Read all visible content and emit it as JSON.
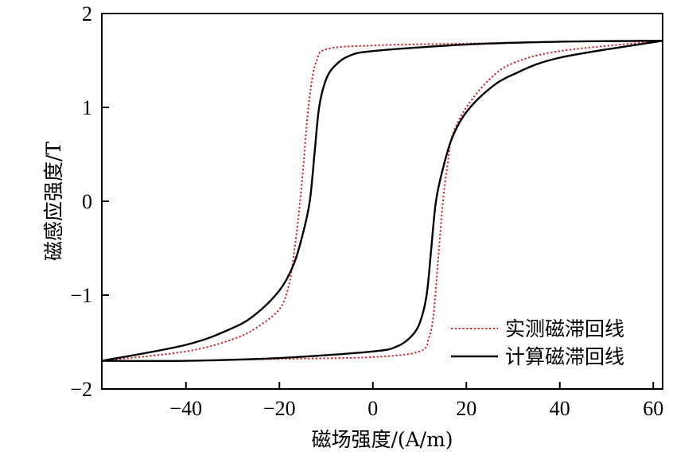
{
  "chart_data": {
    "type": "line",
    "xlabel": "磁场强度/(A/m)",
    "ylabel": "磁感应强度/T",
    "xlim": [
      -58,
      62
    ],
    "ylim": [
      -2,
      2
    ],
    "xticks": [
      -40,
      -20,
      0,
      20,
      40,
      60
    ],
    "yticks": [
      -2,
      -1,
      0,
      1,
      2
    ],
    "xtick_labels": [
      "−40",
      "−20",
      "0",
      "20",
      "40",
      "60"
    ],
    "ytick_labels": [
      "−2",
      "−1",
      "0",
      "1",
      "2"
    ],
    "grid": false,
    "legend_position": "bottom-right",
    "series": [
      {
        "name": "实测磁滞回线",
        "color": "#d42027",
        "line_style": "dotted",
        "descending_branch": [
          [
            62,
            1.71
          ],
          [
            40,
            1.7
          ],
          [
            20,
            1.68
          ],
          [
            0,
            1.66
          ],
          [
            -10,
            1.62
          ],
          [
            -12,
            1.5
          ],
          [
            -13,
            1.3
          ],
          [
            -14,
            0.9
          ],
          [
            -15,
            0.3
          ],
          [
            -16,
            -0.2
          ],
          [
            -17,
            -0.6
          ],
          [
            -18,
            -0.9
          ],
          [
            -20,
            -1.15
          ],
          [
            -25,
            -1.35
          ],
          [
            -30,
            -1.47
          ],
          [
            -40,
            -1.6
          ],
          [
            -58,
            -1.7
          ]
        ],
        "ascending_branch": [
          [
            -58,
            -1.7
          ],
          [
            -40,
            -1.7
          ],
          [
            -20,
            -1.68
          ],
          [
            0,
            -1.66
          ],
          [
            10,
            -1.6
          ],
          [
            12,
            -1.45
          ],
          [
            13,
            -1.2
          ],
          [
            14,
            -0.6
          ],
          [
            15,
            0.0
          ],
          [
            16,
            0.4
          ],
          [
            17,
            0.7
          ],
          [
            20,
            1.0
          ],
          [
            25,
            1.3
          ],
          [
            30,
            1.47
          ],
          [
            40,
            1.6
          ],
          [
            62,
            1.71
          ]
        ]
      },
      {
        "name": "计算磁滞回线",
        "color": "#000000",
        "line_style": "solid",
        "descending_branch": [
          [
            62,
            1.71
          ],
          [
            40,
            1.7
          ],
          [
            20,
            1.67
          ],
          [
            0,
            1.6
          ],
          [
            -5,
            1.55
          ],
          [
            -8,
            1.45
          ],
          [
            -10,
            1.3
          ],
          [
            -11.5,
            1.0
          ],
          [
            -12.5,
            0.5
          ],
          [
            -13.5,
            0.0
          ],
          [
            -15,
            -0.35
          ],
          [
            -17,
            -0.68
          ],
          [
            -20,
            -0.95
          ],
          [
            -25,
            -1.2
          ],
          [
            -30,
            -1.35
          ],
          [
            -40,
            -1.53
          ],
          [
            -58,
            -1.7
          ]
        ],
        "ascending_branch": [
          [
            -58,
            -1.7
          ],
          [
            -40,
            -1.7
          ],
          [
            -20,
            -1.67
          ],
          [
            0,
            -1.6
          ],
          [
            5,
            -1.55
          ],
          [
            8,
            -1.45
          ],
          [
            10,
            -1.3
          ],
          [
            11.5,
            -1.0
          ],
          [
            12.5,
            -0.5
          ],
          [
            13.5,
            0.0
          ],
          [
            15,
            0.35
          ],
          [
            17,
            0.68
          ],
          [
            20,
            0.95
          ],
          [
            25,
            1.2
          ],
          [
            30,
            1.35
          ],
          [
            40,
            1.53
          ],
          [
            62,
            1.71
          ]
        ]
      }
    ]
  }
}
